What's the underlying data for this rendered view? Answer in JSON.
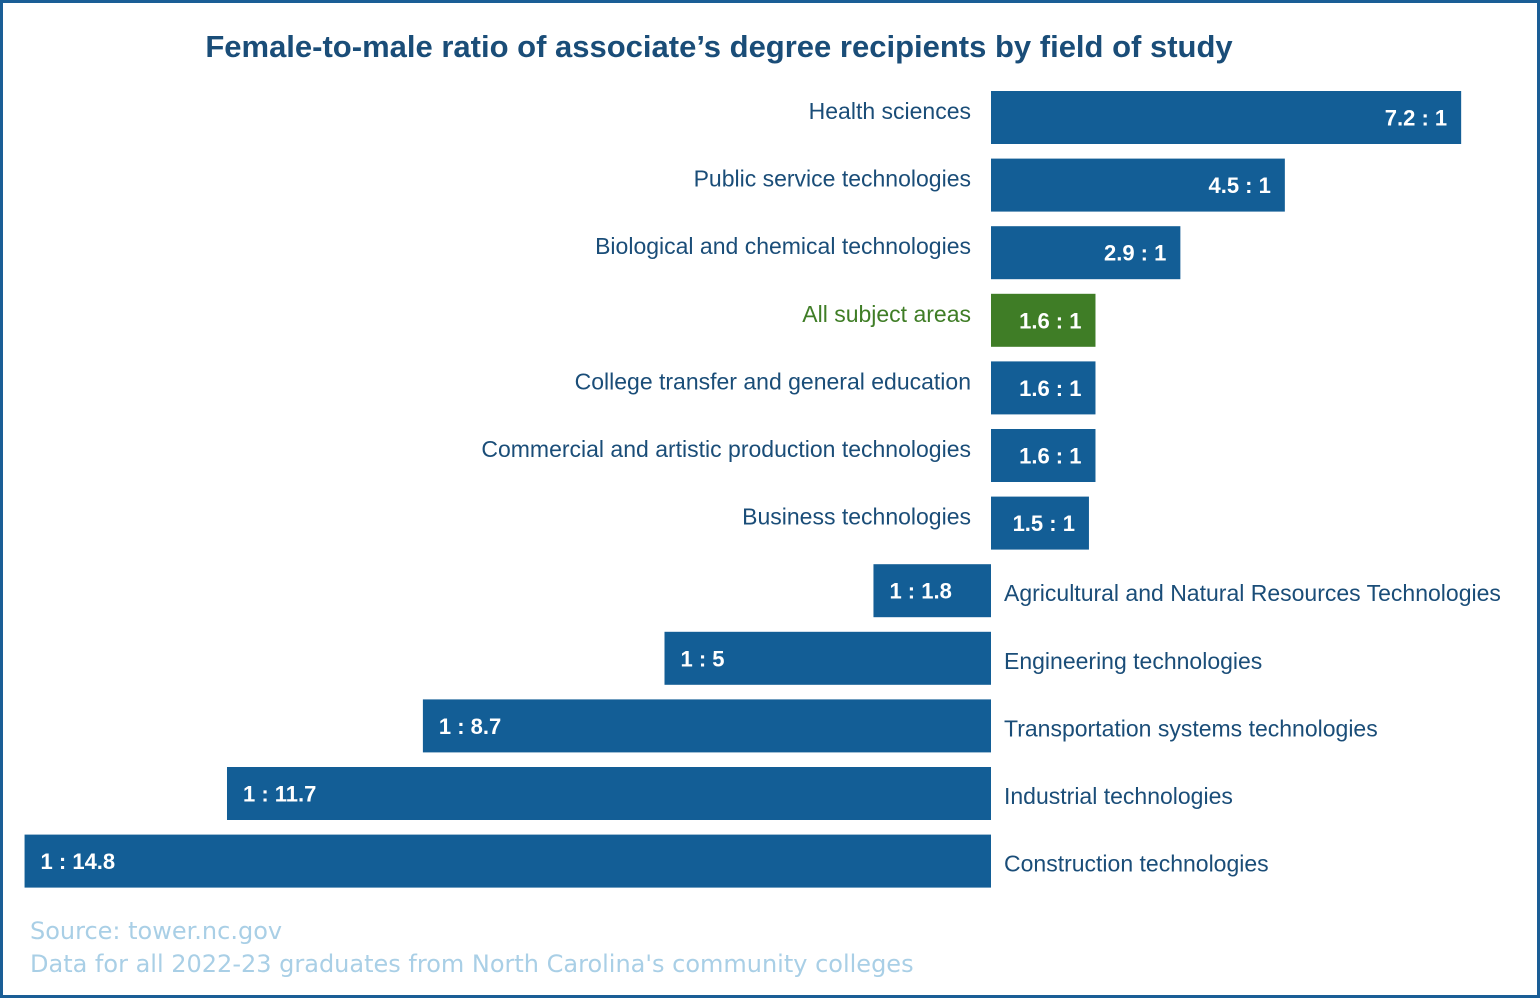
{
  "colors": {
    "bar": "#135e96",
    "highlight_bar": "#3f7d26",
    "label_text": "#1a4d78",
    "highlight_text": "#3f7d26",
    "note_text": "#a9cfe6",
    "title_text": "#1a4d78"
  },
  "chart_data": {
    "type": "bar",
    "orientation": "horizontal-diverging",
    "title": "Female-to-male ratio of associate’s degree recipients by field of study",
    "value_meaning": "positive = female-to-male ratio (X : 1); negative = male-to-female ratio (1 : X)",
    "grid": false,
    "legend": "none",
    "categories": [
      "Health sciences",
      "Public service technologies",
      "Biological and chemical technologies",
      "All subject areas",
      "College transfer and general education",
      "Commercial and artistic production technologies",
      "Business technologies",
      "Agricultural and Natural Resources Technologies",
      "Engineering technologies",
      "Transportation systems technologies",
      "Industrial technologies",
      "Construction technologies"
    ],
    "values": [
      7.2,
      4.5,
      2.9,
      1.6,
      1.6,
      1.6,
      1.5,
      -1.8,
      -5,
      -8.7,
      -11.7,
      -14.8
    ],
    "data_labels": [
      "7.2 : 1",
      "4.5 : 1",
      "2.9 : 1",
      "1.6 : 1",
      "1.6 : 1",
      "1.6 : 1",
      "1.5 : 1",
      "1 : 1.8",
      "1 : 5",
      "1 : 8.7",
      "1 : 11.7",
      "1 : 14.8"
    ],
    "highlight": [
      false,
      false,
      false,
      true,
      false,
      false,
      false,
      false,
      false,
      false,
      false,
      false
    ]
  },
  "notes": {
    "source": "Source: tower.nc.gov",
    "data": "Data for all 2022-23 graduates from North Carolina's community colleges"
  }
}
